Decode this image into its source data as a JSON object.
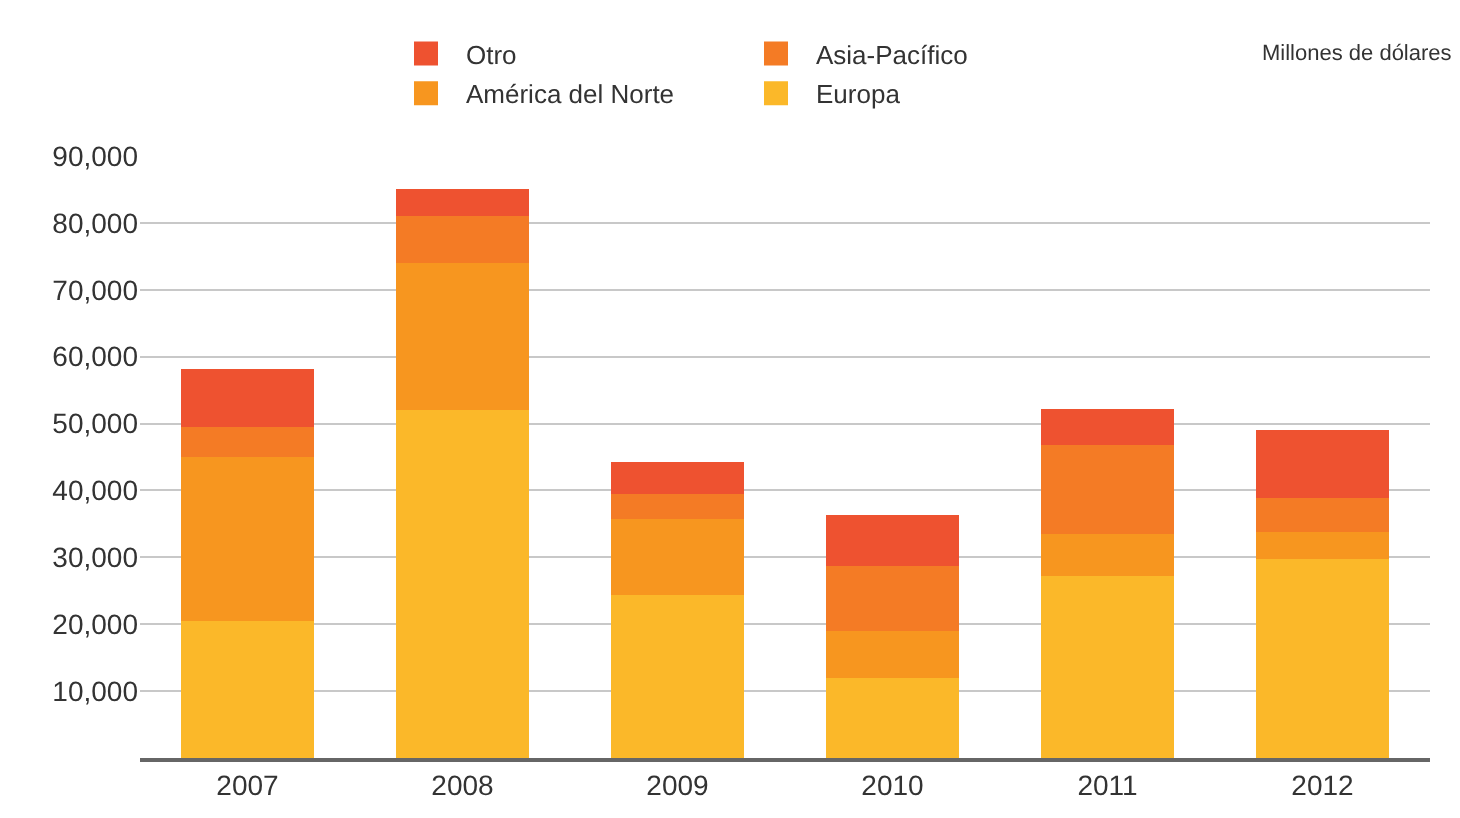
{
  "chart_data": {
    "type": "bar",
    "stacked": true,
    "categories": [
      "2007",
      "2008",
      "2009",
      "2010",
      "2011",
      "2012"
    ],
    "series": [
      {
        "name": "Europa",
        "color": "#fbb829",
        "values": [
          20500,
          52000,
          24400,
          12000,
          27200,
          29800
        ]
      },
      {
        "name": "América del Norte",
        "color": "#f7961f",
        "values": [
          24500,
          22000,
          11300,
          7000,
          6300,
          4000
        ]
      },
      {
        "name": "Asia-Pacífico",
        "color": "#f47b25",
        "values": [
          4500,
          7000,
          3700,
          9700,
          13300,
          5100
        ]
      },
      {
        "name": "Otro",
        "color": "#ee5230",
        "values": [
          8700,
          4000,
          4900,
          7600,
          5400,
          10200
        ]
      }
    ],
    "ylim": [
      0,
      90000
    ],
    "yticks": [
      {
        "value": 10000,
        "label": "10,000"
      },
      {
        "value": 20000,
        "label": "20,000"
      },
      {
        "value": 30000,
        "label": "30,000"
      },
      {
        "value": 40000,
        "label": "40,000"
      },
      {
        "value": 50000,
        "label": "50,000"
      },
      {
        "value": 60000,
        "label": "60,000"
      },
      {
        "value": 70000,
        "label": "70,000"
      },
      {
        "value": 80000,
        "label": "80,000"
      },
      {
        "value": 90000,
        "label": "90,000"
      }
    ],
    "grid": "y",
    "legend": "top",
    "annotations": [
      "Millones de dólares"
    ]
  }
}
